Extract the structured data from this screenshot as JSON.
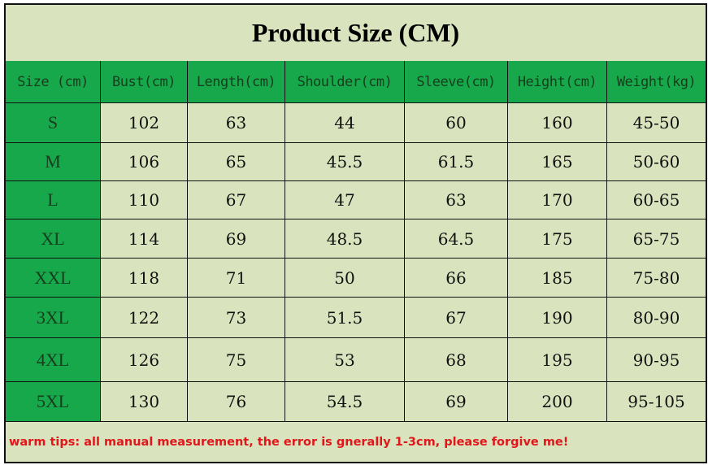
{
  "title": "Product Size (CM)",
  "headers": [
    "Size (cm)",
    "Bust(cm)",
    "Length(cm)",
    "Shoulder(cm)",
    "Sleeve(cm)",
    "Height(cm)",
    "Weight(kg)"
  ],
  "rows": [
    [
      "S",
      "102",
      "63",
      "44",
      "60",
      "160",
      "45-50"
    ],
    [
      "M",
      "106",
      "65",
      "45.5",
      "61.5",
      "165",
      "50-60"
    ],
    [
      "L",
      "110",
      "67",
      "47",
      "63",
      "170",
      "60-65"
    ],
    [
      "XL",
      "114",
      "69",
      "48.5",
      "64.5",
      "175",
      "65-75"
    ],
    [
      "XXL",
      "118",
      "71",
      "50",
      "66",
      "185",
      "75-80"
    ],
    [
      "3XL",
      "122",
      "73",
      "51.5",
      "67",
      "190",
      "80-90"
    ],
    [
      "4XL",
      "126",
      "75",
      "53",
      "68",
      "195",
      "90-95"
    ],
    [
      "5XL",
      "130",
      "76",
      "54.5",
      "69",
      "200",
      "95-105"
    ]
  ],
  "note": "warm tips: all manual measurement, the error is gnerally 1-3cm, please forgive me!",
  "colors": {
    "background": "#d9e3bd",
    "header_green": "#17a84c",
    "note_red": "#e0161b"
  }
}
